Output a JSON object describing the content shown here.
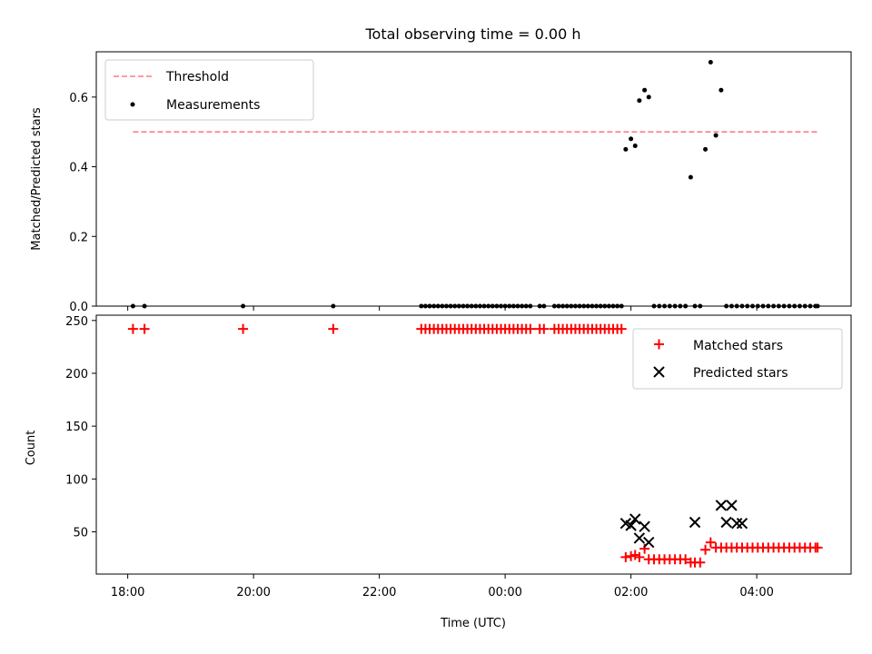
{
  "chart_data": [
    {
      "type": "scatter",
      "title": "Total observing time = 0.00 h",
      "ylabel": "Matched/Predicted stars",
      "ylim": [
        0,
        0.73
      ],
      "yticks": [
        "0.0",
        "0.2",
        "0.4",
        "0.6"
      ],
      "ytick_values": [
        0,
        0.2,
        0.4,
        0.6
      ],
      "grid": false,
      "legend": "top-left",
      "legend_labels": {
        "threshold": "Threshold",
        "measurements": "Measurements"
      },
      "threshold": {
        "name": "Threshold",
        "y": 0.5,
        "x_start": "18:05",
        "x_end": "04:58",
        "color": "#ff7f7f",
        "style": "dashed"
      },
      "series": [
        {
          "name": "Measurements",
          "color": "#000000",
          "x": [
            "18:05",
            "18:16",
            "19:50",
            "21:16",
            "22:40",
            "22:44",
            "22:48",
            "22:52",
            "22:56",
            "23:00",
            "23:04",
            "23:08",
            "23:12",
            "23:16",
            "23:20",
            "23:24",
            "23:28",
            "23:32",
            "23:36",
            "23:40",
            "23:44",
            "23:48",
            "23:52",
            "23:56",
            "00:00",
            "00:04",
            "00:08",
            "00:12",
            "00:16",
            "00:20",
            "00:24",
            "00:33",
            "00:37",
            "00:47",
            "00:51",
            "00:55",
            "00:59",
            "01:03",
            "01:07",
            "01:11",
            "01:15",
            "01:19",
            "01:23",
            "01:27",
            "01:31",
            "01:35",
            "01:39",
            "01:43",
            "01:47",
            "01:51",
            "01:55",
            "02:00",
            "02:04",
            "02:08",
            "02:13",
            "02:17",
            "02:22",
            "02:27",
            "02:32",
            "02:37",
            "02:42",
            "02:47",
            "02:52",
            "02:57",
            "03:01",
            "03:06",
            "03:11",
            "03:16",
            "03:21",
            "03:26",
            "03:31",
            "03:36",
            "03:41",
            "03:46",
            "03:51",
            "03:56",
            "04:01",
            "04:06",
            "04:11",
            "04:16",
            "04:21",
            "04:26",
            "04:31",
            "04:36",
            "04:41",
            "04:46",
            "04:51",
            "04:56",
            "04:58"
          ],
          "y": [
            0,
            0,
            0,
            0,
            0,
            0,
            0,
            0,
            0,
            0,
            0,
            0,
            0,
            0,
            0,
            0,
            0,
            0,
            0,
            0,
            0,
            0,
            0,
            0,
            0,
            0,
            0,
            0,
            0,
            0,
            0,
            0,
            0,
            0,
            0,
            0,
            0,
            0,
            0,
            0,
            0,
            0,
            0,
            0,
            0,
            0,
            0,
            0,
            0,
            0,
            0.45,
            0.48,
            0.46,
            0.59,
            0.62,
            0.6,
            0,
            0,
            0,
            0,
            0,
            0,
            0,
            0.37,
            0,
            0,
            0.45,
            0.7,
            0.49,
            0.62,
            0,
            0,
            0,
            0,
            0,
            0,
            0,
            0,
            0,
            0,
            0,
            0,
            0,
            0,
            0,
            0,
            0,
            0,
            0
          ]
        }
      ]
    },
    {
      "type": "scatter",
      "xlabel": "Time (UTC)",
      "ylabel": "Count",
      "ylim": [
        10,
        255
      ],
      "xlim": [
        "17:30",
        "05:30"
      ],
      "xticks": [
        "18:00",
        "20:00",
        "22:00",
        "00:00",
        "02:00",
        "04:00"
      ],
      "yticks": [
        "50",
        "100",
        "150",
        "200",
        "250"
      ],
      "ytick_values": [
        50,
        100,
        150,
        200,
        250
      ],
      "grid": false,
      "legend": "top-right",
      "series": [
        {
          "name": "Matched stars",
          "marker": "plus",
          "color": "#ff0000",
          "x": [
            "18:05",
            "18:16",
            "19:50",
            "21:16",
            "22:40",
            "22:44",
            "22:48",
            "22:52",
            "22:56",
            "23:00",
            "23:04",
            "23:08",
            "23:12",
            "23:16",
            "23:20",
            "23:24",
            "23:28",
            "23:32",
            "23:36",
            "23:40",
            "23:44",
            "23:48",
            "23:52",
            "23:56",
            "00:00",
            "00:04",
            "00:08",
            "00:12",
            "00:16",
            "00:20",
            "00:24",
            "00:33",
            "00:37",
            "00:47",
            "00:51",
            "00:55",
            "00:59",
            "01:03",
            "01:07",
            "01:11",
            "01:15",
            "01:19",
            "01:23",
            "01:27",
            "01:31",
            "01:35",
            "01:39",
            "01:43",
            "01:47",
            "01:51",
            "01:55",
            "02:00",
            "02:04",
            "02:08",
            "02:13",
            "02:17",
            "02:22",
            "02:27",
            "02:32",
            "02:37",
            "02:42",
            "02:47",
            "02:52",
            "02:57",
            "03:01",
            "03:06",
            "03:11",
            "03:16",
            "03:21",
            "03:26",
            "03:31",
            "03:36",
            "03:41",
            "03:46",
            "03:51",
            "03:56",
            "04:01",
            "04:06",
            "04:11",
            "04:16",
            "04:21",
            "04:26",
            "04:31",
            "04:36",
            "04:41",
            "04:46",
            "04:51",
            "04:56",
            "04:58"
          ],
          "y": [
            242,
            242,
            242,
            242,
            242,
            242,
            242,
            242,
            242,
            242,
            242,
            242,
            242,
            242,
            242,
            242,
            242,
            242,
            242,
            242,
            242,
            242,
            242,
            242,
            242,
            242,
            242,
            242,
            242,
            242,
            242,
            242,
            242,
            242,
            242,
            242,
            242,
            242,
            242,
            242,
            242,
            242,
            242,
            242,
            242,
            242,
            242,
            242,
            242,
            242,
            26,
            27,
            28,
            26,
            34,
            24,
            24,
            24,
            24,
            24,
            24,
            24,
            24,
            21,
            21,
            21,
            33,
            40,
            35,
            35,
            35,
            35,
            35,
            35,
            35,
            35,
            35,
            35,
            35,
            35,
            35,
            35,
            35,
            35,
            35,
            35,
            35,
            35,
            35
          ]
        },
        {
          "name": "Predicted stars",
          "marker": "x",
          "color": "#000000",
          "x": [
            "01:55",
            "02:00",
            "02:04",
            "02:08",
            "02:13",
            "02:17",
            "03:01",
            "03:26",
            "03:31",
            "03:36",
            "03:41",
            "03:46"
          ],
          "y": [
            58,
            56,
            62,
            44,
            55,
            40,
            59,
            75,
            59,
            75,
            58,
            58
          ]
        }
      ]
    }
  ]
}
